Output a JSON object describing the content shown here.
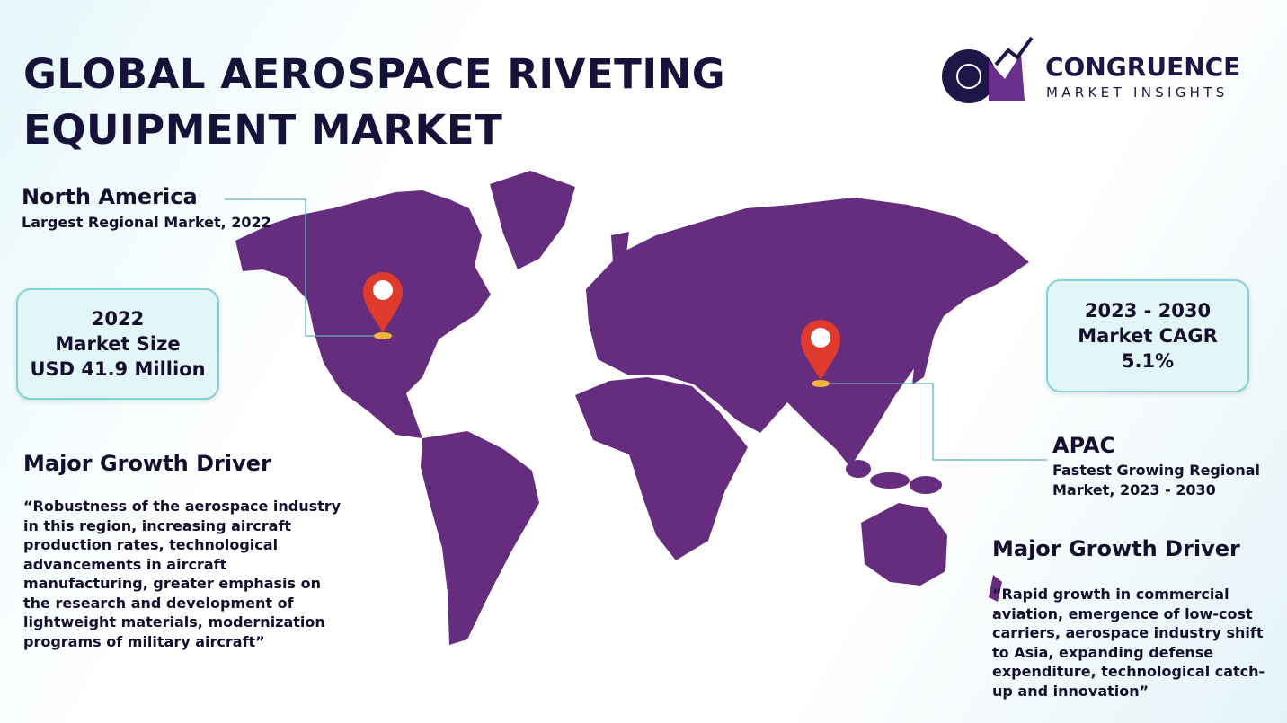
{
  "header": {
    "title_lines": [
      "GLOBAL AEROSPACE RIVETING",
      "EQUIPMENT MARKET"
    ]
  },
  "logo": {
    "name": "CONGRUENCE",
    "tagline": "MARKET INSIGHTS"
  },
  "north_america": {
    "region": "North America",
    "note": "Largest Regional Market, 2022"
  },
  "market_size": {
    "lines": [
      "2022",
      "Market Size",
      "USD 41.9 Million"
    ]
  },
  "cagr": {
    "lines": [
      "2023 - 2030",
      "Market CAGR",
      "5.1%"
    ]
  },
  "apac": {
    "region": "APAC",
    "note_lines": [
      "Fastest Growing Regional",
      "Market, 2023 - 2030"
    ]
  },
  "driver_left": {
    "heading": "Major Growth Driver",
    "text": "“Robustness of the aerospace industry in this region, increasing aircraft production rates, technological advancements in aircraft manufacturing, greater emphasis on the research and development of lightweight materials, modernization programs of military aircraft”"
  },
  "driver_right": {
    "heading": "Major Growth Driver",
    "text": "“Rapid growth in commercial aviation, emergence of low-cost carriers, aerospace industry shift to Asia, expanding defense expenditure, technological catch-up and innovation”"
  }
}
